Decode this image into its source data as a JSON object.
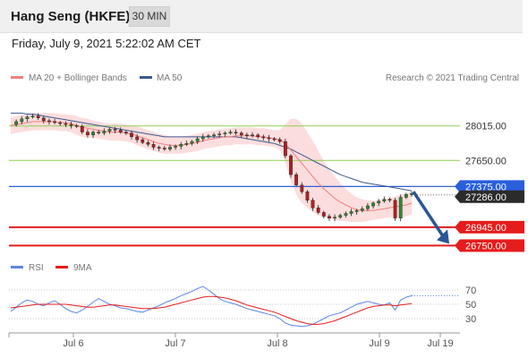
{
  "header": {
    "title": "Hang Seng (HKFE)",
    "timeframe": "30 MIN"
  },
  "datetime": "Friday, July 9, 2021 5:22:02 AM CET",
  "legend": {
    "ma20_label": "MA 20 + Bollinger Bands",
    "ma50_label": "MA 50",
    "credit": "Research © 2021 Trading Central",
    "rsi_label": "RSI",
    "rsi_ma_label": "9MA"
  },
  "colors": {
    "candle_up": "#2e8b2e",
    "candle_down": "#b02020",
    "ma20": "#f08080",
    "ma50": "#3d5a8f",
    "bollinger_fill": "#fbd5d5",
    "pivot": "#2a5fdc",
    "support": "#e51c1c",
    "resistance": "#8fcf55",
    "rsi": "#5b86e5",
    "rsi_ma": "#e51c1c",
    "arrow": "#2a5597"
  },
  "chart_data": [
    {
      "type": "candlestick",
      "title": "Hang Seng (HKFE)",
      "timeframe": "30 MIN",
      "x_ticks": [
        "Jul 6",
        "Jul 7",
        "Jul 8",
        "Jul 9",
        "Jul 19"
      ],
      "ylim": [
        26650,
        28400
      ],
      "levels": [
        {
          "value": 28015.0,
          "label": "28015.00",
          "role": "resistance"
        },
        {
          "value": 27650.0,
          "label": "27650.00",
          "role": "resistance"
        },
        {
          "value": 27375.0,
          "label": "27375.00",
          "role": "pivot"
        },
        {
          "value": 27286.0,
          "label": "27286.00",
          "role": "last"
        },
        {
          "value": 26945.0,
          "label": "26945.00",
          "role": "support"
        },
        {
          "value": 26750.0,
          "label": "26750.00",
          "role": "support"
        }
      ],
      "scenario": {
        "from": 27320,
        "to": 26750,
        "direction": "down"
      },
      "price_path": [
        28030,
        28060,
        28090,
        28110,
        28120,
        28100,
        28070,
        28060,
        28050,
        28040,
        28030,
        28020,
        28010,
        27950,
        27920,
        27950,
        27940,
        27960,
        27980,
        27970,
        27950,
        27940,
        27900,
        27870,
        27840,
        27820,
        27790,
        27780,
        27770,
        27790,
        27800,
        27820,
        27830,
        27850,
        27880,
        27900,
        27910,
        27920,
        27930,
        27940,
        27950,
        27940,
        27920,
        27910,
        27920,
        27900,
        27890,
        27880,
        27870,
        27850,
        27700,
        27500,
        27390,
        27320,
        27230,
        27150,
        27100,
        27060,
        27040,
        27050,
        27070,
        27090,
        27110,
        27120,
        27140,
        27170,
        27200,
        27220,
        27240,
        27230,
        27040,
        27260,
        27290,
        27300
      ],
      "ma20": [
        28020,
        28030,
        28040,
        28050,
        28060,
        28060,
        28060,
        28060,
        28060,
        28050,
        28050,
        28040,
        28020,
        28000,
        27990,
        27980,
        27970,
        27960,
        27950,
        27950,
        27950,
        27940,
        27930,
        27910,
        27890,
        27870,
        27850,
        27830,
        27820,
        27810,
        27810,
        27810,
        27820,
        27830,
        27840,
        27860,
        27870,
        27880,
        27890,
        27900,
        27900,
        27910,
        27910,
        27910,
        27910,
        27900,
        27900,
        27890,
        27880,
        27870,
        27830,
        27760,
        27690,
        27620,
        27550,
        27480,
        27410,
        27350,
        27300,
        27250,
        27210,
        27180,
        27150,
        27130,
        27120,
        27120,
        27120,
        27130,
        27140,
        27150,
        27160,
        27170,
        27180,
        27200
      ],
      "ma50": [
        28150,
        28150,
        28150,
        28140,
        28140,
        28130,
        28120,
        28110,
        28100,
        28090,
        28080,
        28070,
        28060,
        28050,
        28040,
        28030,
        28020,
        28010,
        28000,
        27990,
        27980,
        27970,
        27960,
        27950,
        27940,
        27930,
        27920,
        27910,
        27900,
        27900,
        27900,
        27900,
        27900,
        27900,
        27900,
        27900,
        27900,
        27900,
        27900,
        27900,
        27900,
        27900,
        27890,
        27880,
        27870,
        27860,
        27850,
        27840,
        27830,
        27810,
        27790,
        27770,
        27740,
        27710,
        27680,
        27650,
        27620,
        27590,
        27560,
        27530,
        27500,
        27480,
        27460,
        27440,
        27420,
        27410,
        27400,
        27390,
        27380,
        27370,
        27360,
        27350,
        27340,
        27330
      ],
      "bollinger_width": [
        90,
        90,
        90,
        90,
        90,
        90,
        90,
        90,
        90,
        90,
        90,
        90,
        100,
        100,
        100,
        90,
        90,
        90,
        90,
        90,
        90,
        90,
        90,
        100,
        100,
        100,
        100,
        100,
        100,
        90,
        90,
        90,
        90,
        90,
        90,
        90,
        90,
        90,
        90,
        90,
        90,
        90,
        90,
        90,
        90,
        90,
        90,
        90,
        90,
        100,
        200,
        330,
        400,
        420,
        400,
        380,
        340,
        300,
        260,
        230,
        200,
        170,
        150,
        130,
        120,
        110,
        100,
        100,
        100,
        100,
        110,
        120,
        120,
        120
      ]
    },
    {
      "type": "line",
      "title": "RSI",
      "series_names": [
        "RSI",
        "9MA"
      ],
      "ylim": [
        15,
        85
      ],
      "y_ticks": [
        70,
        50,
        30
      ],
      "rsi": [
        40,
        46,
        52,
        56,
        54,
        50,
        48,
        52,
        55,
        50,
        44,
        40,
        38,
        42,
        47,
        53,
        58,
        54,
        50,
        48,
        45,
        44,
        42,
        40,
        39,
        42,
        45,
        48,
        52,
        55,
        58,
        62,
        65,
        68,
        72,
        75,
        70,
        64,
        58,
        54,
        52,
        50,
        47,
        44,
        42,
        40,
        38,
        36,
        34,
        30,
        24,
        21,
        20,
        19,
        20,
        22,
        26,
        30,
        34,
        36,
        38,
        42,
        46,
        50,
        52,
        54,
        52,
        50,
        49,
        52,
        42,
        56,
        60,
        62
      ],
      "rsi_ma": [
        45,
        46,
        47,
        48,
        49,
        50,
        50,
        50,
        50,
        50,
        50,
        49,
        48,
        47,
        46,
        46,
        47,
        48,
        49,
        49,
        48,
        47,
        46,
        45,
        44,
        44,
        44,
        45,
        46,
        48,
        50,
        52,
        54,
        56,
        58,
        60,
        61,
        61,
        60,
        59,
        57,
        55,
        52,
        49,
        47,
        45,
        43,
        41,
        39,
        36,
        33,
        30,
        27,
        25,
        23,
        22,
        22,
        23,
        25,
        27,
        30,
        33,
        36,
        39,
        42,
        45,
        47,
        48,
        49,
        49,
        48,
        49,
        50,
        51
      ]
    }
  ]
}
